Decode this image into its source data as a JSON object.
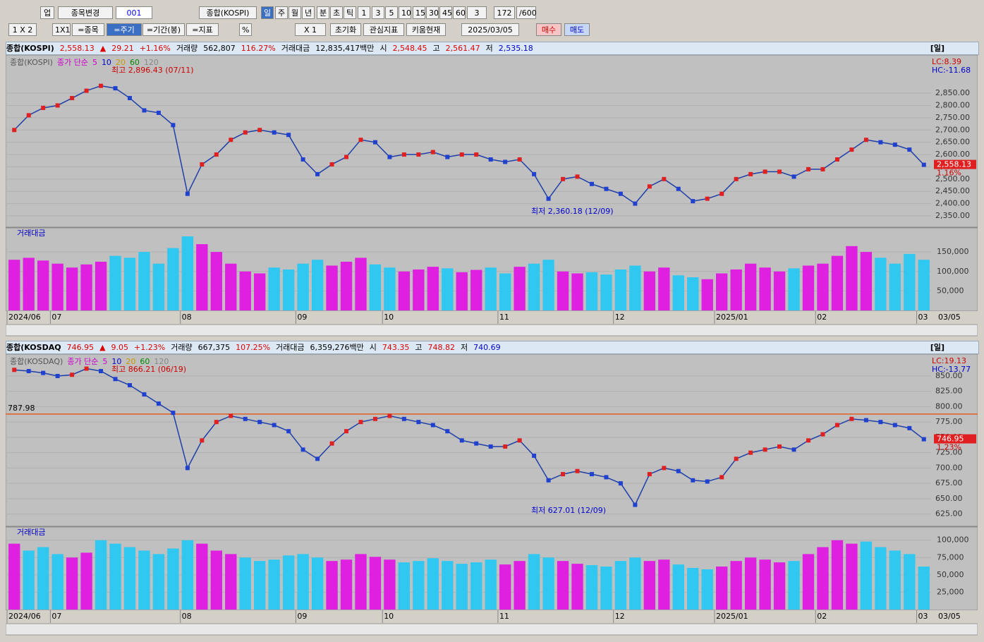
{
  "toolbar": {
    "row1": [
      "업",
      "종목변경",
      "001",
      "종합(KOSPI)",
      "일",
      "주",
      "월",
      "년",
      "분",
      "초",
      "틱",
      "1",
      "3",
      "5",
      "10",
      "15",
      "30",
      "45",
      "60",
      "3",
      "172",
      "/600"
    ],
    "row2": [
      "1 X 2",
      "1X1",
      "=종목",
      "=주기",
      "=기간(봉)",
      "=지표",
      "%",
      "X 1",
      "초기화",
      "관심지표",
      "키움현재",
      "2025/03/05",
      "매수",
      "매도"
    ]
  },
  "panels": [
    {
      "header": [
        "종합(KOSPI)",
        "2,558.13",
        "▲",
        "29.21",
        "+1.16%",
        "거래량",
        "562,807",
        "116.27%",
        "거래대금",
        "12,835,417백만",
        "시",
        "2,548.45",
        "고",
        "2,561.47",
        "저",
        "2,535.18"
      ],
      "period": "[일]"
    },
    {
      "header": [
        "종합(KOSDAQ",
        "746.95",
        "▲",
        "9.05",
        "+1.23%",
        "거래량",
        "667,375",
        "107.25%",
        "거래대금",
        "6,359,276백만",
        "시",
        "743.35",
        "고",
        "748.82",
        "저",
        "740.69"
      ],
      "period": "[일]"
    }
  ],
  "chart_data": [
    {
      "type": "line",
      "legend": [
        "종합(KOSPI)",
        "종가 단순",
        "5",
        "10",
        "20",
        "60",
        "120"
      ],
      "categories": [
        "2024/06",
        null,
        null,
        "07",
        null,
        null,
        null,
        null,
        null,
        null,
        null,
        null,
        "08",
        null,
        null,
        null,
        null,
        null,
        null,
        null,
        "09",
        null,
        null,
        null,
        null,
        null,
        "10",
        null,
        null,
        null,
        null,
        null,
        null,
        null,
        "11",
        null,
        null,
        null,
        null,
        null,
        null,
        null,
        "12",
        null,
        null,
        null,
        null,
        null,
        null,
        "2025/01",
        null,
        null,
        null,
        null,
        null,
        null,
        "02",
        null,
        null,
        null,
        null,
        null,
        null,
        "03"
      ],
      "end_label": "03/05",
      "series": [
        {
          "name": "종가",
          "color": "#1f3fa8",
          "values": [
            2700,
            2760,
            2790,
            2800,
            2830,
            2860,
            2880,
            2870,
            2830,
            2780,
            2770,
            2720,
            2440,
            2560,
            2600,
            2660,
            2690,
            2700,
            2690,
            2680,
            2580,
            2520,
            2560,
            2590,
            2660,
            2650,
            2590,
            2600,
            2600,
            2610,
            2590,
            2600,
            2600,
            2580,
            2570,
            2580,
            2520,
            2420,
            2500,
            2510,
            2480,
            2460,
            2440,
            2400,
            2470,
            2500,
            2460,
            2410,
            2420,
            2440,
            2500,
            2520,
            2530,
            2530,
            2510,
            2540,
            2540,
            2580,
            2620,
            2660,
            2650,
            2640,
            2620,
            2558.13
          ]
        }
      ],
      "ylim": [
        2304,
        2994
      ],
      "yticks": [
        {
          "value": 2350,
          "label": "2,350.00"
        },
        {
          "value": 2400,
          "label": "2,400.00"
        },
        {
          "value": 2450,
          "label": "2,450.00"
        },
        {
          "value": 2500,
          "label": "2,500.00"
        },
        {
          "value": 2550,
          "label": "2,550.00"
        },
        {
          "value": 2600,
          "label": "2,600.00"
        },
        {
          "value": 2650,
          "label": "2,650.00"
        },
        {
          "value": 2700,
          "label": "2,700.00"
        },
        {
          "value": 2750,
          "label": "2,750.00"
        },
        {
          "value": 2800,
          "label": "2,800.00"
        },
        {
          "value": 2850,
          "label": "2,850.00"
        }
      ],
      "last": {
        "value": 2558.13,
        "label": "2,558.13",
        "change": "1.16%"
      },
      "lc": "LC:8.39",
      "hc": "HC:-11.68",
      "high_note": "최고 2,896.43 (07/11)",
      "low_note": "최저 2,360.18 (12/09)",
      "volume_title": "거래대금",
      "volume_values": [
        130000,
        135000,
        128000,
        120000,
        110000,
        118000,
        125000,
        140000,
        135000,
        150000,
        120000,
        160000,
        190000,
        170000,
        150000,
        120000,
        100000,
        95000,
        110000,
        105000,
        120000,
        130000,
        115000,
        125000,
        135000,
        118000,
        110000,
        100000,
        105000,
        112000,
        108000,
        98000,
        104000,
        110000,
        95000,
        112000,
        120000,
        130000,
        100000,
        95000,
        98000,
        92000,
        105000,
        115000,
        100000,
        110000,
        90000,
        85000,
        80000,
        95000,
        105000,
        120000,
        110000,
        100000,
        108000,
        115000,
        120000,
        140000,
        165000,
        150000,
        135000,
        120000,
        145000,
        130000
      ],
      "volume_ylim": [
        0,
        210000
      ],
      "volume_yticks": [
        {
          "value": 50000,
          "label": "50,000"
        },
        {
          "value": 100000,
          "label": "100,000"
        },
        {
          "value": 150000,
          "label": "150,000"
        }
      ]
    },
    {
      "type": "line",
      "legend": [
        "종합(KOSDAQ)",
        "종가 단순",
        "5",
        "10",
        "20",
        "60",
        "120"
      ],
      "categories": [
        "2024/06",
        null,
        null,
        "07",
        null,
        null,
        null,
        null,
        null,
        null,
        null,
        null,
        "08",
        null,
        null,
        null,
        null,
        null,
        null,
        null,
        "09",
        null,
        null,
        null,
        null,
        null,
        "10",
        null,
        null,
        null,
        null,
        null,
        null,
        null,
        "11",
        null,
        null,
        null,
        null,
        null,
        null,
        null,
        "12",
        null,
        null,
        null,
        null,
        null,
        null,
        "2025/01",
        null,
        null,
        null,
        null,
        null,
        null,
        "02",
        null,
        null,
        null,
        null,
        null,
        null,
        "03"
      ],
      "end_label": "03/05",
      "series": [
        {
          "name": "종가",
          "color": "#1f3fa8",
          "values": [
            860,
            858,
            855,
            850,
            852,
            862,
            858,
            845,
            835,
            820,
            805,
            790,
            700,
            745,
            775,
            785,
            780,
            775,
            770,
            760,
            730,
            715,
            740,
            760,
            775,
            780,
            785,
            780,
            775,
            770,
            760,
            745,
            740,
            735,
            735,
            745,
            720,
            680,
            690,
            695,
            690,
            685,
            675,
            640,
            690,
            700,
            695,
            680,
            678,
            685,
            715,
            725,
            730,
            735,
            730,
            745,
            755,
            770,
            780,
            778,
            775,
            770,
            765,
            746.95
          ]
        }
      ],
      "ylim": [
        605,
        881
      ],
      "yticks": [
        {
          "value": 625,
          "label": "625.00"
        },
        {
          "value": 650,
          "label": "650.00"
        },
        {
          "value": 675,
          "label": "675.00"
        },
        {
          "value": 700,
          "label": "700.00"
        },
        {
          "value": 725,
          "label": "725.00"
        },
        {
          "value": 750,
          "label": "750.00"
        },
        {
          "value": 775,
          "label": "775.00"
        },
        {
          "value": 800,
          "label": "800.00"
        },
        {
          "value": 825,
          "label": "825.00"
        },
        {
          "value": 850,
          "label": "850.00"
        }
      ],
      "hline": {
        "value": 787.98,
        "label": "787.98"
      },
      "last": {
        "value": 746.95,
        "label": "746.95",
        "change": "1.23%"
      },
      "lc": "LC:19.13",
      "hc": "HC:-13.77",
      "high_note": "최고 866.21 (06/19)",
      "low_note": "최저 627.01 (12/09)",
      "volume_title": "거래대금",
      "volume_values": [
        95000,
        85000,
        90000,
        80000,
        75000,
        82000,
        100000,
        95000,
        90000,
        85000,
        80000,
        88000,
        100000,
        95000,
        85000,
        80000,
        75000,
        70000,
        72000,
        78000,
        80000,
        75000,
        70000,
        72000,
        80000,
        76000,
        72000,
        68000,
        70000,
        74000,
        70000,
        66000,
        68000,
        72000,
        65000,
        70000,
        80000,
        75000,
        70000,
        66000,
        64000,
        62000,
        70000,
        75000,
        70000,
        72000,
        65000,
        60000,
        58000,
        62000,
        70000,
        75000,
        72000,
        68000,
        70000,
        80000,
        90000,
        100000,
        95000,
        98000,
        90000,
        85000,
        80000,
        62000
      ],
      "volume_ylim": [
        0,
        118000
      ],
      "volume_yticks": [
        {
          "value": 25000,
          "label": "25,000"
        },
        {
          "value": 50000,
          "label": "50,000"
        },
        {
          "value": 75000,
          "label": "75,000"
        },
        {
          "value": 100000,
          "label": "100,000"
        }
      ]
    }
  ]
}
